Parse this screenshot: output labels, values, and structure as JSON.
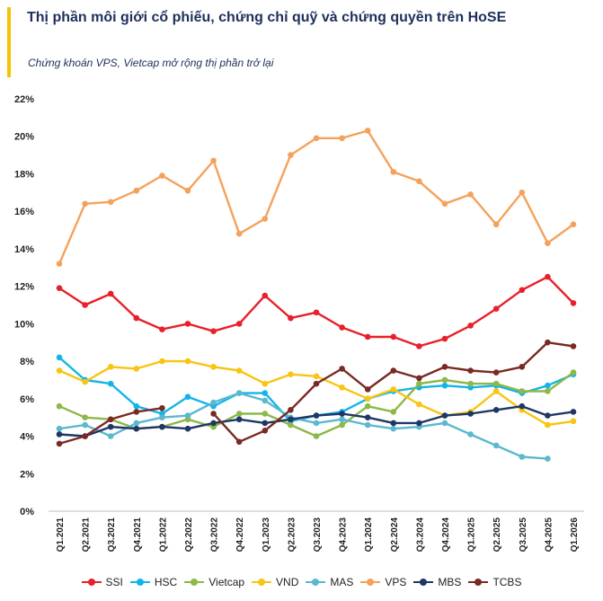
{
  "header": {
    "title": "Thị phần môi giới cổ phiếu, chứng chỉ quỹ và chứng quyền trên HoSE",
    "subtitle": "Chứng khoán VPS, Vietcap mở rộng thị phần trở lại",
    "accent_color": "#f5c400",
    "title_color": "#1f2f5c"
  },
  "chart_data": {
    "type": "line",
    "title": "Thị phần môi giới cổ phiếu, chứng chỉ quỹ và chứng quyền trên HoSE",
    "subtitle": "Chứng khoán VPS, Vietcap mở rộng thị phần trở lại",
    "xlabel": "",
    "ylabel": "",
    "ylim": [
      0,
      22
    ],
    "y_ticks": [
      "0%",
      "2%",
      "4%",
      "6%",
      "8%",
      "10%",
      "12%",
      "14%",
      "16%",
      "18%",
      "20%",
      "22%"
    ],
    "y_tick_values": [
      0,
      2,
      4,
      6,
      8,
      10,
      12,
      14,
      16,
      18,
      20,
      22
    ],
    "grid": false,
    "legend_position": "bottom",
    "categories": [
      "Q1.2021",
      "Q2.2021",
      "Q3.2021",
      "Q4.2021",
      "Q1.2022",
      "Q2.2022",
      "Q3.2022",
      "Q4.2022",
      "Q1.2023",
      "Q2.2023",
      "Q3.2023",
      "Q4.2023",
      "Q1.2024",
      "Q2.2024",
      "Q3.2024",
      "Q4.2024",
      "Q1.2025",
      "Q2.2025",
      "Q3.2025",
      "Q4.2025",
      "Q1.2026"
    ],
    "series": [
      {
        "name": "SSI",
        "color": "#e8202a",
        "values": [
          11.9,
          11.0,
          11.6,
          10.3,
          9.7,
          10.0,
          9.6,
          10.0,
          11.5,
          10.3,
          10.6,
          9.8,
          9.3,
          9.3,
          8.8,
          9.2,
          9.9,
          10.8,
          11.8,
          12.5,
          11.1
        ]
      },
      {
        "name": "HSC",
        "color": "#12b5ea",
        "values": [
          8.2,
          7.0,
          6.8,
          5.6,
          5.2,
          6.1,
          5.6,
          6.3,
          6.3,
          4.8,
          5.1,
          5.3,
          6.0,
          6.4,
          6.6,
          6.7,
          6.6,
          6.7,
          6.3,
          6.7,
          7.3
        ]
      },
      {
        "name": "Vietcap",
        "color": "#8db84a",
        "values": [
          5.6,
          5.0,
          4.9,
          4.4,
          4.5,
          4.9,
          4.5,
          5.2,
          5.2,
          4.6,
          4.0,
          4.6,
          5.6,
          5.3,
          6.8,
          7.0,
          6.8,
          6.8,
          6.4,
          6.4,
          7.4
        ]
      },
      {
        "name": "VND",
        "color": "#f9c412",
        "values": [
          7.5,
          6.9,
          7.7,
          7.6,
          8.0,
          8.0,
          7.7,
          7.5,
          6.8,
          7.3,
          7.2,
          6.6,
          6.0,
          6.5,
          5.7,
          5.1,
          5.3,
          6.4,
          5.4,
          4.6,
          4.8
        ]
      },
      {
        "name": "MAS",
        "color": "#5bb8cf",
        "values": [
          4.4,
          4.6,
          4.0,
          4.7,
          5.0,
          5.1,
          5.8,
          6.3,
          5.9,
          5.0,
          4.7,
          4.9,
          4.6,
          4.4,
          4.5,
          4.7,
          4.1,
          3.5,
          2.9,
          2.8,
          null
        ]
      },
      {
        "name": "VPS",
        "color": "#f4a25b",
        "values": [
          13.2,
          16.4,
          16.5,
          17.1,
          17.9,
          17.1,
          18.7,
          14.8,
          15.6,
          19.0,
          19.9,
          19.9,
          20.3,
          18.1,
          17.6,
          16.4,
          16.9,
          15.3,
          17.0,
          14.3,
          15.3
        ]
      },
      {
        "name": "MBS",
        "color": "#1f3764",
        "values": [
          4.1,
          4.0,
          4.5,
          4.4,
          4.5,
          4.4,
          4.7,
          4.9,
          4.7,
          4.9,
          5.1,
          5.2,
          5.0,
          4.7,
          4.7,
          5.1,
          5.2,
          5.4,
          5.6,
          5.1,
          5.3
        ]
      },
      {
        "name": "TCBS",
        "color": "#7a2a24",
        "values": [
          3.6,
          4.0,
          4.9,
          5.3,
          5.5,
          null,
          5.2,
          3.7,
          4.3,
          5.4,
          6.8,
          7.6,
          6.5,
          7.5,
          7.1,
          7.7,
          7.5,
          7.4,
          7.7,
          9.0,
          8.8
        ]
      }
    ]
  }
}
